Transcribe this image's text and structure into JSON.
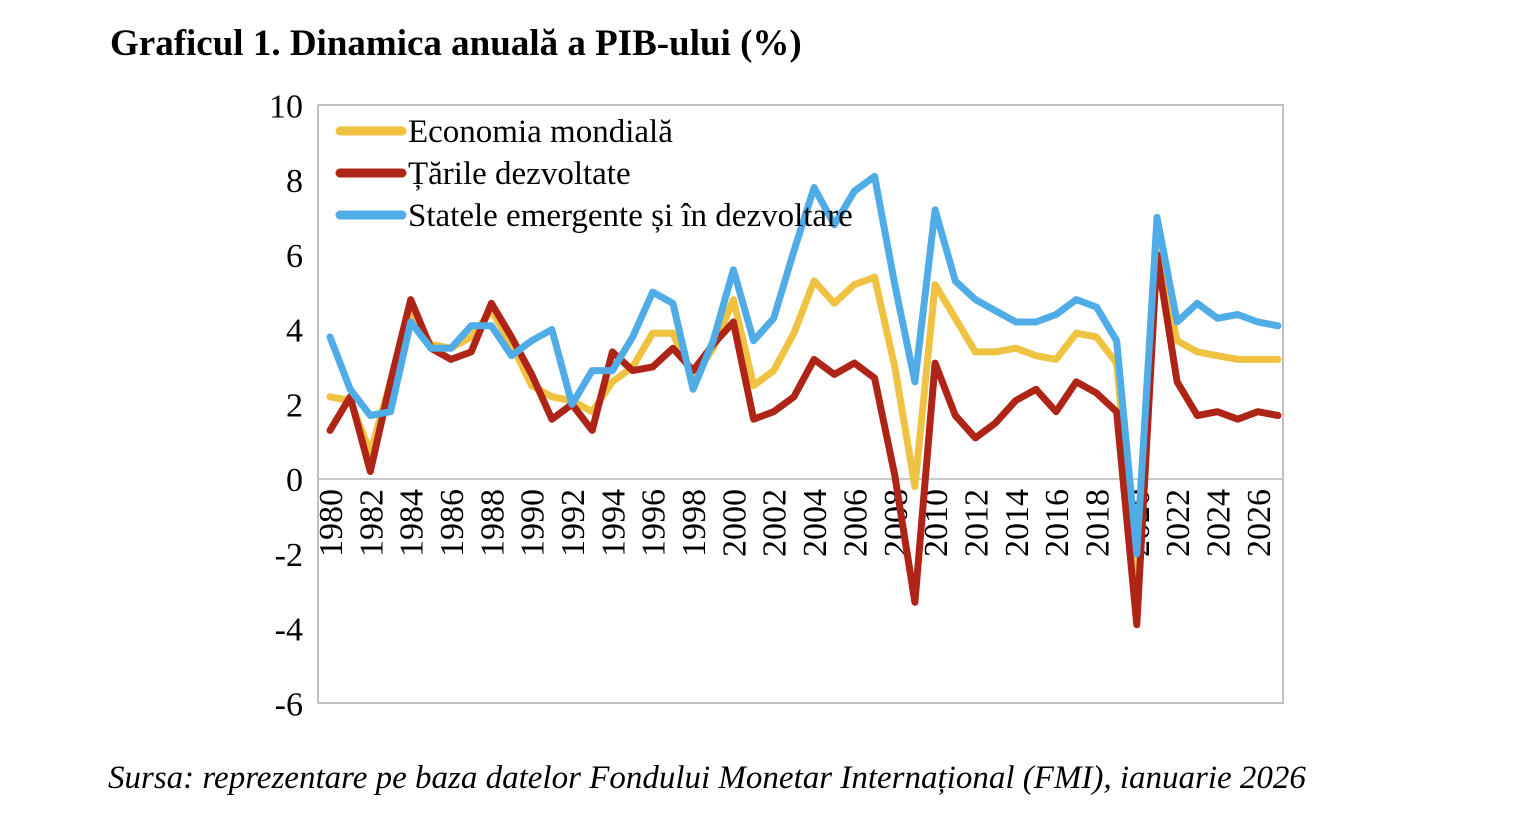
{
  "page": {
    "title": "Graficul 1. Dinamica anuală a PIB-ului (%)",
    "source_note": "Sursa: reprezentare pe baza datelor Fondului Monetar Internațional (FMI), ianuarie 2026"
  },
  "chart_data": {
    "type": "line",
    "title": "Graficul 1. Dinamica anuală a PIB-ului (%)",
    "ylabel": "",
    "xlabel": "",
    "ylim": [
      -6,
      10
    ],
    "y_ticks": [
      10,
      8,
      6,
      4,
      2,
      0,
      -2,
      -4,
      -6
    ],
    "x_tick_labels": [
      "1980",
      "1982",
      "1984",
      "1986",
      "1988",
      "1990",
      "1992",
      "1994",
      "1996",
      "1998",
      "2000",
      "2002",
      "2004",
      "2006",
      "2008",
      "2010",
      "2012",
      "2014",
      "2016",
      "2018",
      "2020",
      "2022",
      "2024",
      "2026"
    ],
    "x_tick_rotation": 90,
    "grid": "zero-line-only",
    "legend_position": "top-left-inside",
    "x": [
      1980,
      1981,
      1982,
      1983,
      1984,
      1985,
      1986,
      1987,
      1988,
      1989,
      1990,
      1991,
      1992,
      1993,
      1994,
      1995,
      1996,
      1997,
      1998,
      1999,
      2000,
      2001,
      2002,
      2003,
      2004,
      2005,
      2006,
      2007,
      2008,
      2009,
      2010,
      2011,
      2012,
      2013,
      2014,
      2015,
      2016,
      2017,
      2018,
      2019,
      2020,
      2021,
      2022,
      2023,
      2024,
      2025,
      2026,
      2027
    ],
    "series": [
      {
        "name": "Economia mondială",
        "color": "#F0C242",
        "values": [
          2.2,
          2.1,
          0.7,
          2.6,
          4.5,
          3.6,
          3.5,
          3.8,
          4.5,
          3.6,
          2.5,
          2.2,
          2.1,
          1.8,
          2.6,
          3.0,
          3.9,
          3.9,
          2.7,
          3.5,
          4.8,
          2.5,
          2.9,
          3.9,
          5.3,
          4.7,
          5.2,
          5.4,
          3.0,
          -0.2,
          5.2,
          4.3,
          3.4,
          3.4,
          3.5,
          3.3,
          3.2,
          3.9,
          3.8,
          3.1,
          -2.7,
          6.2,
          3.7,
          3.4,
          3.3,
          3.2,
          3.2,
          3.2
        ]
      },
      {
        "name": "Țările dezvoltate",
        "color": "#AE2517",
        "values": [
          1.3,
          2.2,
          0.2,
          2.6,
          4.8,
          3.5,
          3.2,
          3.4,
          4.7,
          3.8,
          2.8,
          1.6,
          2.0,
          1.3,
          3.4,
          2.9,
          3.0,
          3.5,
          2.9,
          3.6,
          4.2,
          1.6,
          1.8,
          2.2,
          3.2,
          2.8,
          3.1,
          2.7,
          0.1,
          -3.3,
          3.1,
          1.7,
          1.1,
          1.5,
          2.1,
          2.4,
          1.8,
          2.6,
          2.3,
          1.8,
          -3.9,
          6.0,
          2.6,
          1.7,
          1.8,
          1.6,
          1.8,
          1.7
        ]
      },
      {
        "name": "Statele emergente și în dezvoltare",
        "color": "#4FACE6",
        "values": [
          3.8,
          2.4,
          1.7,
          1.8,
          4.2,
          3.5,
          3.5,
          4.1,
          4.1,
          3.3,
          3.7,
          4.0,
          2.0,
          2.9,
          2.9,
          3.8,
          5.0,
          4.7,
          2.4,
          3.7,
          5.6,
          3.7,
          4.3,
          6.1,
          7.8,
          6.8,
          7.7,
          8.1,
          5.2,
          2.6,
          7.2,
          5.3,
          4.8,
          4.5,
          4.2,
          4.2,
          4.4,
          4.8,
          4.6,
          3.7,
          -2.0,
          7.0,
          4.2,
          4.7,
          4.3,
          4.4,
          4.2,
          4.1
        ]
      }
    ],
    "source": "Sursa: reprezentare pe baza datelor Fondului Monetar Internațional (FMI), ianuarie 2026"
  },
  "style": {
    "border_color": "#BFBFBF",
    "zero_line_color": "#C9C9C9",
    "text_color": "#000000"
  }
}
